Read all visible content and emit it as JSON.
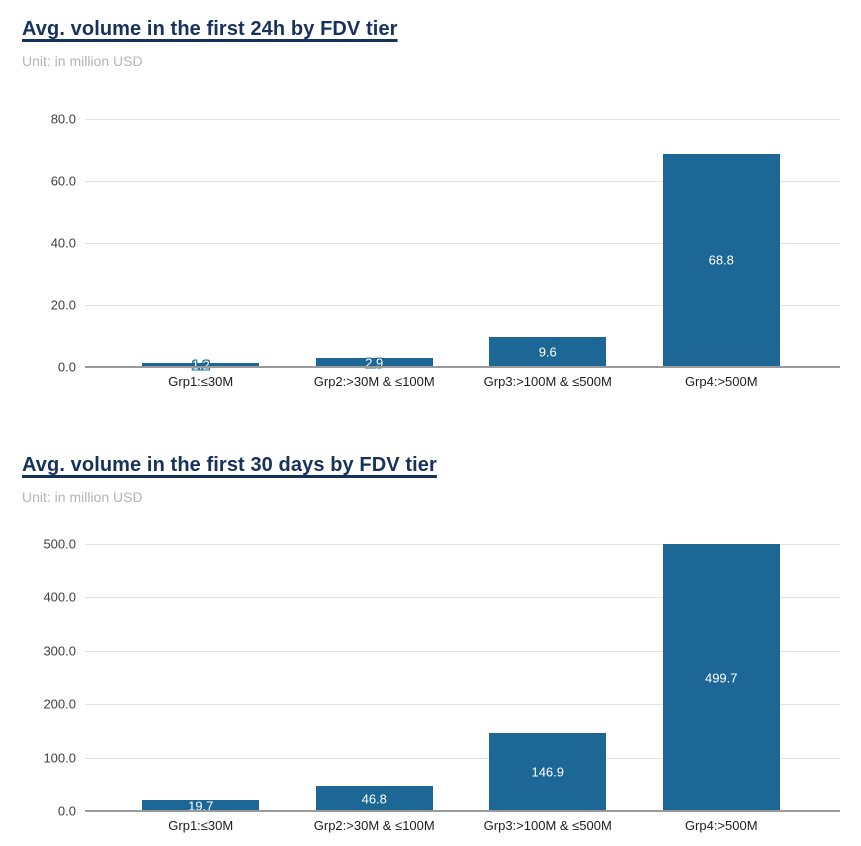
{
  "chart_data": [
    {
      "type": "bar",
      "title": "Avg. volume in the first 24h by FDV tier",
      "subtitle": "Unit: in million USD",
      "categories": [
        "Grp1:≤30M",
        "Grp2:>30M & ≤100M",
        "Grp3:>100M & ≤500M",
        "Grp4:>500M"
      ],
      "values": [
        1.2,
        2.9,
        9.6,
        68.8
      ],
      "value_labels": [
        "1.2",
        "2.9",
        "9.6",
        "68.8"
      ],
      "xlabel": "",
      "ylabel": "",
      "ylim": [
        0,
        80
      ],
      "yticks": [
        0,
        20,
        40,
        60,
        80
      ],
      "ytick_labels": [
        "0.0",
        "20.0",
        "40.0",
        "60.0",
        "80.0"
      ],
      "grid": true,
      "legend": "none",
      "bar_color": "#1c6796",
      "value_label_color": "#ffffff"
    },
    {
      "type": "bar",
      "title": "Avg. volume in the first 30 days by FDV tier",
      "subtitle": "Unit: in million USD",
      "categories": [
        "Grp1:≤30M",
        "Grp2:>30M & ≤100M",
        "Grp3:>100M & ≤500M",
        "Grp4:>500M"
      ],
      "values": [
        19.7,
        46.8,
        146.9,
        499.7
      ],
      "value_labels": [
        "19.7",
        "46.8",
        "146.9",
        "499.7"
      ],
      "xlabel": "",
      "ylabel": "",
      "ylim": [
        0,
        500
      ],
      "yticks": [
        0,
        100,
        200,
        300,
        400,
        500
      ],
      "ytick_labels": [
        "0.0",
        "100.0",
        "200.0",
        "300.0",
        "400.0",
        "500.0"
      ],
      "grid": true,
      "legend": "none",
      "bar_color": "#1c6796",
      "value_label_color": "#ffffff"
    }
  ],
  "colors": {
    "title": "#16325c",
    "subtitle": "#b4b4b4",
    "gridline": "#e2e2e2",
    "axis_line": "#9a9a9a",
    "bar": "#1c6796",
    "tick_label": "#3f3f3f",
    "category_label": "#1d1d1d"
  }
}
